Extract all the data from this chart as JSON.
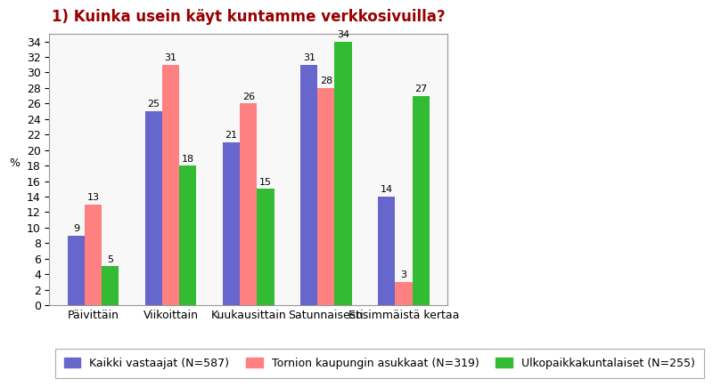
{
  "title": "1) Kuinka usein käyt kuntamme verkkosivuilla?",
  "categories": [
    "Päivittäin",
    "Viikoittain",
    "Kuukausittain",
    "Satunnaisesti",
    "Ensimmäistä kertaa"
  ],
  "series": [
    {
      "label": "Kaikki vastaajat (N=587)",
      "color": "#6666cc",
      "values": [
        9,
        25,
        21,
        31,
        14
      ]
    },
    {
      "label": "Tornion kaupungin asukkaat (N=319)",
      "color": "#ff8080",
      "values": [
        13,
        31,
        26,
        28,
        3
      ]
    },
    {
      "label": "Ulkopaikkakuntalaiset (N=255)",
      "color": "#33bb33",
      "values": [
        5,
        18,
        15,
        34,
        27
      ]
    }
  ],
  "ylabel": "%",
  "ylim": [
    0,
    35
  ],
  "yticks": [
    0,
    2,
    4,
    6,
    8,
    10,
    12,
    14,
    16,
    18,
    20,
    22,
    24,
    26,
    28,
    30,
    32,
    34
  ],
  "bar_width": 0.22,
  "background_color": "#ffffff",
  "plot_background": "#f8f8f8",
  "title_fontsize": 12,
  "title_color": "#990000",
  "label_fontsize": 9,
  "tick_fontsize": 9,
  "legend_fontsize": 9,
  "value_fontsize": 8,
  "border_color": "#999999",
  "grid_color": "#dddddd"
}
